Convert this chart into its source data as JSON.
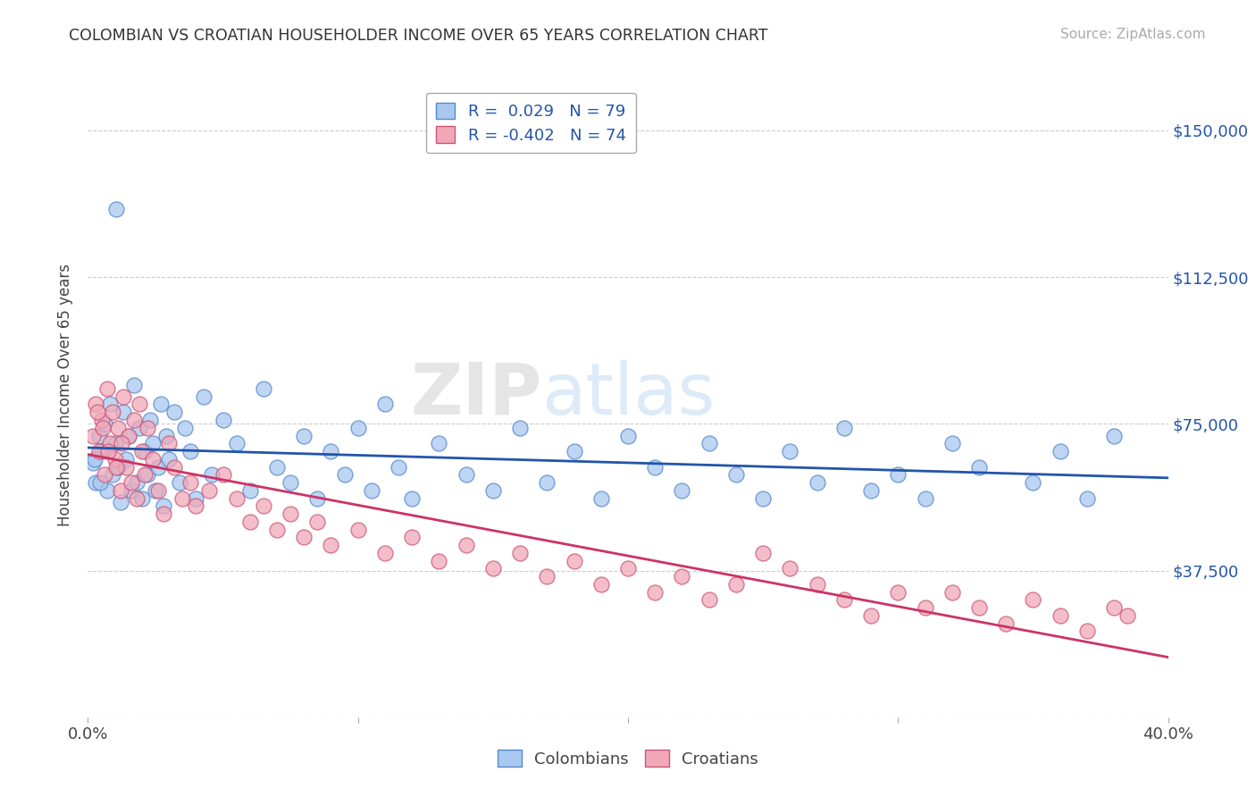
{
  "title": "COLOMBIAN VS CROATIAN HOUSEHOLDER INCOME OVER 65 YEARS CORRELATION CHART",
  "source": "Source: ZipAtlas.com",
  "ylabel": "Householder Income Over 65 years",
  "yticks": [
    0,
    37500,
    75000,
    112500,
    150000
  ],
  "ytick_labels": [
    "",
    "$37,500",
    "$75,000",
    "$112,500",
    "$150,000"
  ],
  "xmin": 0.0,
  "xmax": 40.0,
  "ymin": 0,
  "ymax": 165000,
  "legend_colombians": "Colombians",
  "legend_croatians": "Croatians",
  "r_colombians": "0.029",
  "n_colombians": "79",
  "r_croatians": "-0.402",
  "n_croatians": "74",
  "color_blue_fill": "#A8C8F0",
  "color_blue_edge": "#5588CC",
  "color_pink_fill": "#F0A8B8",
  "color_pink_edge": "#CC5577",
  "color_blue_line": "#2255AA",
  "color_pink_line": "#CC3366",
  "color_title": "#333333",
  "color_source": "#999999",
  "color_axis_label": "#2255AA",
  "color_grid": "#CCCCCC",
  "colombians_x": [
    0.2,
    0.3,
    0.4,
    0.5,
    0.6,
    0.7,
    0.8,
    0.9,
    1.0,
    1.1,
    1.2,
    1.3,
    1.4,
    1.5,
    1.6,
    1.7,
    1.8,
    1.9,
    2.0,
    2.1,
    2.2,
    2.3,
    2.4,
    2.5,
    2.6,
    2.7,
    2.8,
    2.9,
    3.0,
    3.2,
    3.4,
    3.6,
    3.8,
    4.0,
    4.3,
    4.6,
    5.0,
    5.5,
    6.0,
    6.5,
    7.0,
    7.5,
    8.0,
    8.5,
    9.0,
    9.5,
    10.0,
    10.5,
    11.0,
    11.5,
    12.0,
    13.0,
    14.0,
    15.0,
    16.0,
    17.0,
    18.0,
    19.0,
    20.0,
    21.0,
    22.0,
    23.0,
    24.0,
    25.0,
    26.0,
    27.0,
    28.0,
    29.0,
    30.0,
    31.0,
    32.0,
    33.0,
    35.0,
    36.0,
    37.0,
    38.0,
    0.25,
    0.45,
    1.05
  ],
  "colombians_y": [
    65000,
    60000,
    72000,
    68000,
    75000,
    58000,
    80000,
    62000,
    70000,
    64000,
    55000,
    78000,
    66000,
    72000,
    58000,
    85000,
    60000,
    74000,
    56000,
    68000,
    62000,
    76000,
    70000,
    58000,
    64000,
    80000,
    54000,
    72000,
    66000,
    78000,
    60000,
    74000,
    68000,
    56000,
    82000,
    62000,
    76000,
    70000,
    58000,
    84000,
    64000,
    60000,
    72000,
    56000,
    68000,
    62000,
    74000,
    58000,
    80000,
    64000,
    56000,
    70000,
    62000,
    58000,
    74000,
    60000,
    68000,
    56000,
    72000,
    64000,
    58000,
    70000,
    62000,
    56000,
    68000,
    60000,
    74000,
    58000,
    62000,
    56000,
    70000,
    64000,
    60000,
    68000,
    56000,
    72000,
    66000,
    60000,
    130000
  ],
  "croatians_x": [
    0.2,
    0.3,
    0.4,
    0.5,
    0.6,
    0.7,
    0.8,
    0.9,
    1.0,
    1.1,
    1.2,
    1.3,
    1.4,
    1.5,
    1.6,
    1.7,
    1.8,
    1.9,
    2.0,
    2.1,
    2.2,
    2.4,
    2.6,
    2.8,
    3.0,
    3.2,
    3.5,
    3.8,
    4.0,
    4.5,
    5.0,
    5.5,
    6.0,
    6.5,
    7.0,
    7.5,
    8.0,
    8.5,
    9.0,
    10.0,
    11.0,
    12.0,
    13.0,
    14.0,
    15.0,
    16.0,
    17.0,
    18.0,
    19.0,
    20.0,
    21.0,
    22.0,
    23.0,
    24.0,
    25.0,
    26.0,
    27.0,
    28.0,
    29.0,
    30.0,
    31.0,
    32.0,
    33.0,
    34.0,
    35.0,
    36.0,
    37.0,
    38.0,
    38.5,
    0.35,
    0.55,
    0.75,
    1.05,
    1.25
  ],
  "croatians_y": [
    72000,
    80000,
    68000,
    76000,
    62000,
    84000,
    70000,
    78000,
    66000,
    74000,
    58000,
    82000,
    64000,
    72000,
    60000,
    76000,
    56000,
    80000,
    68000,
    62000,
    74000,
    66000,
    58000,
    52000,
    70000,
    64000,
    56000,
    60000,
    54000,
    58000,
    62000,
    56000,
    50000,
    54000,
    48000,
    52000,
    46000,
    50000,
    44000,
    48000,
    42000,
    46000,
    40000,
    44000,
    38000,
    42000,
    36000,
    40000,
    34000,
    38000,
    32000,
    36000,
    30000,
    34000,
    42000,
    38000,
    34000,
    30000,
    26000,
    32000,
    28000,
    32000,
    28000,
    24000,
    30000,
    26000,
    22000,
    28000,
    26000,
    78000,
    74000,
    68000,
    64000,
    70000
  ]
}
